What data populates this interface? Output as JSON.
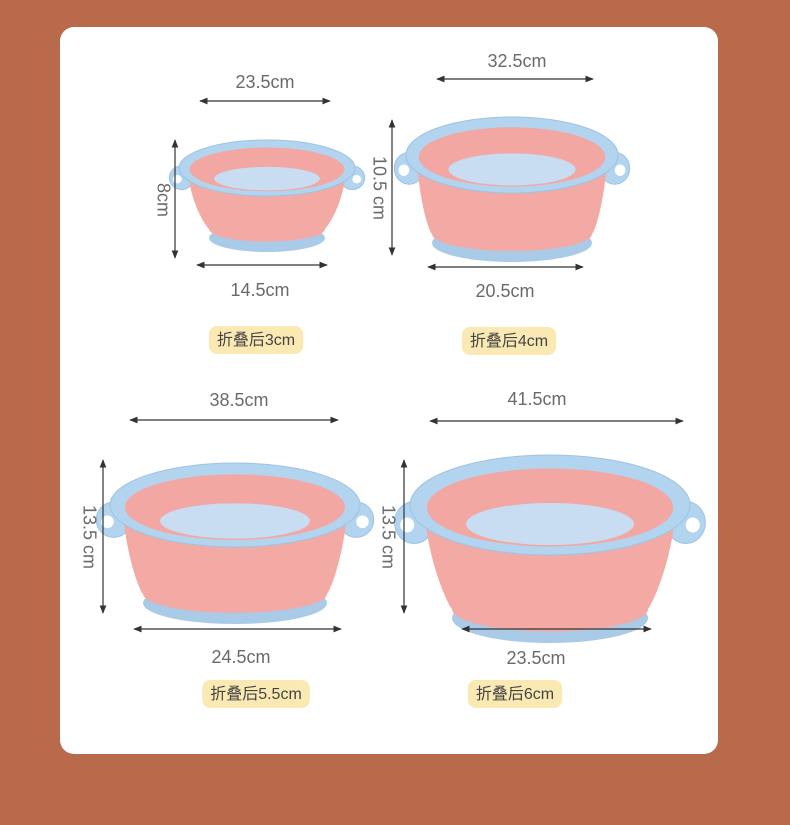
{
  "items": [
    {
      "top_width": "23.5cm",
      "height": "8cm",
      "bottom_width": "14.5cm",
      "folded": "折叠后3cm"
    },
    {
      "top_width": "32.5cm",
      "height": "10.5 cm",
      "bottom_width": "20.5cm",
      "folded": "折叠后4cm"
    },
    {
      "top_width": "38.5cm",
      "height": "13.5 cm",
      "bottom_width": "24.5cm",
      "folded": "折叠后5.5cm"
    },
    {
      "top_width": "41.5cm",
      "height": "13.5 cm",
      "bottom_width": "23.5cm",
      "folded": "折叠后6cm"
    }
  ]
}
